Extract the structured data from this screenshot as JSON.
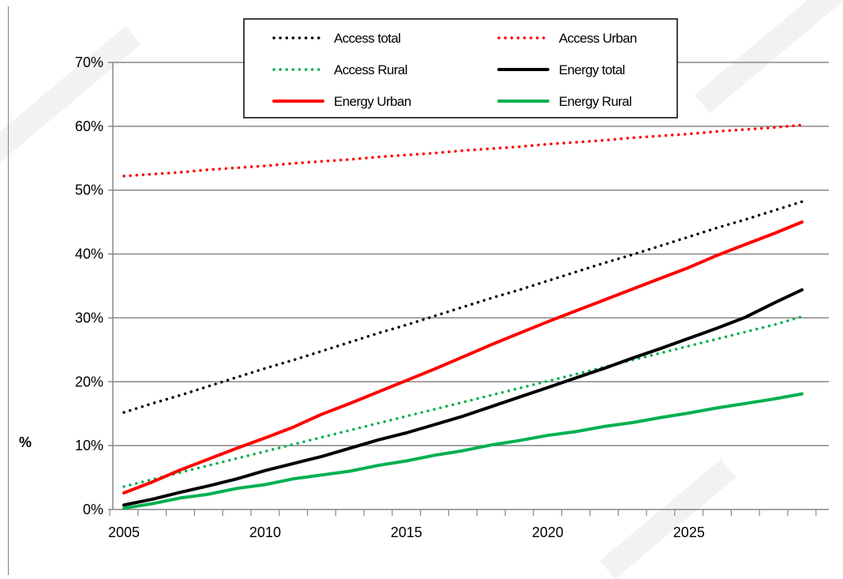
{
  "chart_data": {
    "type": "line",
    "title": "",
    "xlabel": "",
    "ylabel": "%",
    "xlim": [
      2005,
      2029
    ],
    "ylim": [
      0,
      70
    ],
    "x_ticks": [
      "2005",
      "2010",
      "2015",
      "2020",
      "2025"
    ],
    "y_ticks": [
      "0%",
      "10%",
      "20%",
      "30%",
      "40%",
      "50%",
      "60%",
      "70%"
    ],
    "grid": "horizontal",
    "legend_position": "top-center",
    "x": [
      2005,
      2006,
      2007,
      2008,
      2009,
      2010,
      2011,
      2012,
      2013,
      2014,
      2015,
      2016,
      2017,
      2018,
      2019,
      2020,
      2021,
      2022,
      2023,
      2024,
      2025,
      2026,
      2027,
      2028,
      2029
    ],
    "series": [
      {
        "name": "Access total",
        "color": "#000000",
        "dash": "dotted",
        "values": [
          15.2,
          16.6,
          17.9,
          19.3,
          20.7,
          22.1,
          23.4,
          24.8,
          26.2,
          27.6,
          28.9,
          30.3,
          31.7,
          33.1,
          34.4,
          35.8,
          37.2,
          38.6,
          39.9,
          41.3,
          42.7,
          44.1,
          45.4,
          46.8,
          48.2
        ]
      },
      {
        "name": "Access Urban",
        "color": "#ff0000",
        "dash": "dotted",
        "values": [
          52.2,
          52.5,
          52.8,
          53.2,
          53.5,
          53.8,
          54.2,
          54.5,
          54.8,
          55.2,
          55.5,
          55.8,
          56.2,
          56.5,
          56.8,
          57.2,
          57.5,
          57.8,
          58.2,
          58.5,
          58.8,
          59.2,
          59.5,
          59.8,
          60.2
        ]
      },
      {
        "name": "Access Rural",
        "color": "#00b050",
        "dash": "dotted",
        "values": [
          3.6,
          4.7,
          5.8,
          6.9,
          8.0,
          9.1,
          10.2,
          11.3,
          12.4,
          13.5,
          14.6,
          15.7,
          16.8,
          17.9,
          19.0,
          20.1,
          21.2,
          22.3,
          23.4,
          24.5,
          25.6,
          26.7,
          27.8,
          28.9,
          30.2
        ]
      },
      {
        "name": "Energy total",
        "color": "#000000",
        "dash": "solid",
        "values": [
          0.7,
          1.6,
          2.7,
          3.7,
          4.8,
          6.1,
          7.2,
          8.3,
          9.6,
          10.9,
          12.0,
          13.3,
          14.6,
          16.1,
          17.6,
          19.1,
          20.6,
          22.1,
          23.7,
          25.2,
          26.8,
          28.4,
          30.1,
          32.3,
          34.4
        ]
      },
      {
        "name": "Energy Urban",
        "color": "#ff0000",
        "dash": "solid",
        "values": [
          2.6,
          4.3,
          6.2,
          7.9,
          9.6,
          11.2,
          12.9,
          14.9,
          16.6,
          18.4,
          20.2,
          22.0,
          23.9,
          25.8,
          27.6,
          29.4,
          31.1,
          32.8,
          34.5,
          36.2,
          37.9,
          39.8,
          41.5,
          43.2,
          45.0
        ]
      },
      {
        "name": "Energy Rural",
        "color": "#00b050",
        "dash": "solid",
        "values": [
          0.2,
          0.9,
          1.8,
          2.4,
          3.3,
          3.9,
          4.8,
          5.4,
          6.0,
          6.9,
          7.6,
          8.5,
          9.2,
          10.1,
          10.8,
          11.6,
          12.2,
          13.0,
          13.6,
          14.4,
          15.1,
          15.9,
          16.6,
          17.3,
          18.1
        ]
      }
    ]
  }
}
